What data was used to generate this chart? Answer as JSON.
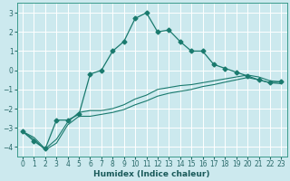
{
  "xlabel": "Humidex (Indice chaleur)",
  "bg_color": "#cce9ee",
  "grid_color": "#ffffff",
  "line_color": "#1a7a6e",
  "xlim": [
    -0.5,
    23.5
  ],
  "ylim": [
    -4.5,
    3.5
  ],
  "yticks": [
    -4,
    -3,
    -2,
    -1,
    0,
    1,
    2,
    3
  ],
  "xticks": [
    0,
    1,
    2,
    3,
    4,
    5,
    6,
    7,
    8,
    9,
    10,
    11,
    12,
    13,
    14,
    15,
    16,
    17,
    18,
    19,
    20,
    21,
    22,
    23
  ],
  "series1_x": [
    0,
    1,
    2,
    3,
    4,
    5,
    6,
    7,
    8,
    9,
    10,
    11,
    12,
    13,
    14,
    15,
    16,
    17,
    18,
    19,
    20,
    21,
    22,
    23
  ],
  "series1_y": [
    -3.2,
    -3.7,
    -4.1,
    -2.6,
    -2.6,
    -2.3,
    -0.2,
    0.0,
    1.0,
    1.5,
    2.7,
    3.0,
    2.0,
    2.1,
    1.5,
    1.0,
    1.0,
    0.3,
    0.1,
    -0.1,
    -0.3,
    -0.5,
    -0.65,
    -0.6
  ],
  "series2_x": [
    0,
    1,
    2,
    3,
    4,
    5,
    6,
    7,
    8,
    9,
    10,
    11,
    12,
    13,
    14,
    15,
    16,
    17,
    18,
    19,
    20,
    21,
    22,
    23
  ],
  "series2_y": [
    -3.2,
    -3.5,
    -4.1,
    -3.6,
    -2.7,
    -2.2,
    -2.1,
    -2.1,
    -2.0,
    -1.8,
    -1.5,
    -1.3,
    -1.0,
    -0.9,
    -0.8,
    -0.75,
    -0.65,
    -0.55,
    -0.45,
    -0.35,
    -0.25,
    -0.35,
    -0.55,
    -0.6
  ],
  "series3_x": [
    0,
    1,
    2,
    3,
    4,
    5,
    6,
    7,
    8,
    9,
    10,
    11,
    12,
    13,
    14,
    15,
    16,
    17,
    18,
    19,
    20,
    21,
    22,
    23
  ],
  "series3_y": [
    -3.2,
    -3.6,
    -4.15,
    -3.8,
    -2.85,
    -2.4,
    -2.4,
    -2.3,
    -2.2,
    -2.05,
    -1.8,
    -1.6,
    -1.35,
    -1.2,
    -1.1,
    -1.0,
    -0.85,
    -0.75,
    -0.62,
    -0.5,
    -0.38,
    -0.5,
    -0.65,
    -0.7
  ],
  "tick_fontsize": 5.5,
  "xlabel_fontsize": 6.5,
  "tick_color": "#2a6a6a",
  "xlabel_color": "#1a5a5a"
}
